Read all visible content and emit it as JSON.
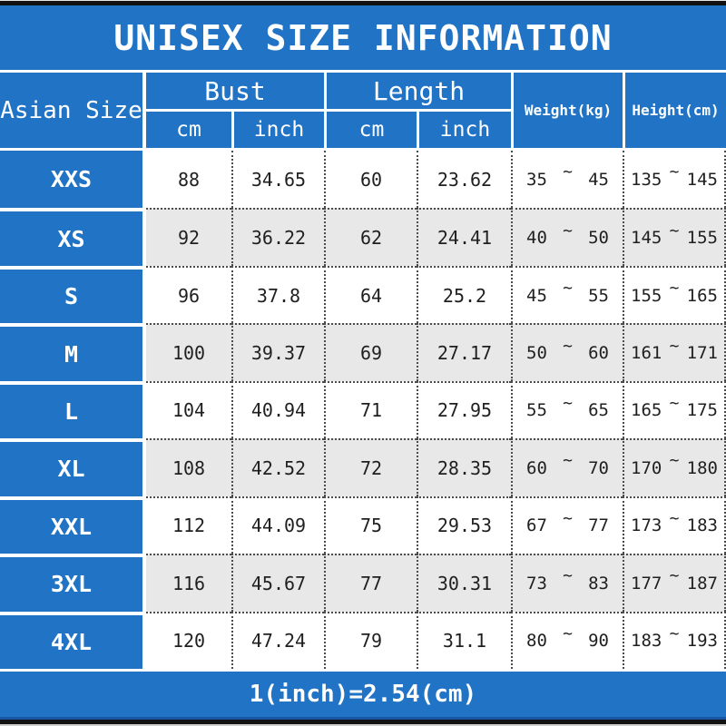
{
  "title": "UNISEX SIZE INFORMATION",
  "footer": "1(inch)=2.54(cm)",
  "tilde": "~",
  "colors": {
    "blue": "#2173c5",
    "row_alt": "#e8e8e8",
    "bar": "#121212",
    "text": "#1f1f1f"
  },
  "header": {
    "size": "Asian Size",
    "bust": "Bust",
    "length": "Length",
    "cm": "cm",
    "inch": "inch",
    "weight": "Weight(kg)",
    "height": "Height(cm)"
  },
  "rows": [
    {
      "size": "XXS",
      "bust_cm": "88",
      "bust_inch": "34.65",
      "length_cm": "60",
      "length_inch": "23.62",
      "weight_min": "35",
      "weight_max": "45",
      "height_min": "135",
      "height_max": "145"
    },
    {
      "size": "XS",
      "bust_cm": "92",
      "bust_inch": "36.22",
      "length_cm": "62",
      "length_inch": "24.41",
      "weight_min": "40",
      "weight_max": "50",
      "height_min": "145",
      "height_max": "155"
    },
    {
      "size": "S",
      "bust_cm": "96",
      "bust_inch": "37.8",
      "length_cm": "64",
      "length_inch": "25.2",
      "weight_min": "45",
      "weight_max": "55",
      "height_min": "155",
      "height_max": "165"
    },
    {
      "size": "M",
      "bust_cm": "100",
      "bust_inch": "39.37",
      "length_cm": "69",
      "length_inch": "27.17",
      "weight_min": "50",
      "weight_max": "60",
      "height_min": "161",
      "height_max": "171"
    },
    {
      "size": "L",
      "bust_cm": "104",
      "bust_inch": "40.94",
      "length_cm": "71",
      "length_inch": "27.95",
      "weight_min": "55",
      "weight_max": "65",
      "height_min": "165",
      "height_max": "175"
    },
    {
      "size": "XL",
      "bust_cm": "108",
      "bust_inch": "42.52",
      "length_cm": "72",
      "length_inch": "28.35",
      "weight_min": "60",
      "weight_max": "70",
      "height_min": "170",
      "height_max": "180"
    },
    {
      "size": "XXL",
      "bust_cm": "112",
      "bust_inch": "44.09",
      "length_cm": "75",
      "length_inch": "29.53",
      "weight_min": "67",
      "weight_max": "77",
      "height_min": "173",
      "height_max": "183"
    },
    {
      "size": "3XL",
      "bust_cm": "116",
      "bust_inch": "45.67",
      "length_cm": "77",
      "length_inch": "30.31",
      "weight_min": "73",
      "weight_max": "83",
      "height_min": "177",
      "height_max": "187"
    },
    {
      "size": "4XL",
      "bust_cm": "120",
      "bust_inch": "47.24",
      "length_cm": "79",
      "length_inch": "31.1",
      "weight_min": "80",
      "weight_max": "90",
      "height_min": "183",
      "height_max": "193"
    }
  ]
}
